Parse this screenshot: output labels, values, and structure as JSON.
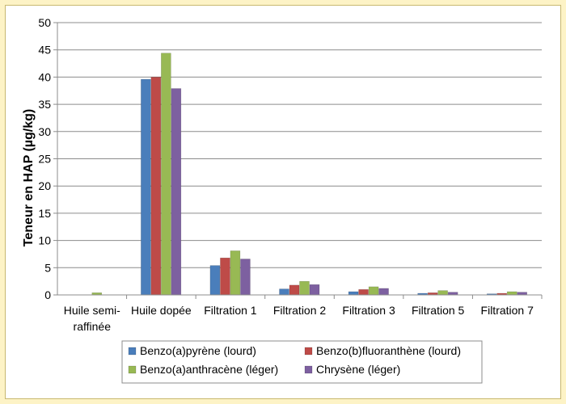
{
  "chart_data": {
    "type": "bar",
    "ylabel": "Teneur en HAP (µg/kg)",
    "ylim": [
      0,
      50
    ],
    "yticks": [
      0,
      5,
      10,
      15,
      20,
      25,
      30,
      35,
      40,
      45,
      50
    ],
    "grid": true,
    "legend_position": "bottom",
    "categories": [
      [
        "Huile semi-",
        "raffinée"
      ],
      [
        "Huile dopée"
      ],
      [
        "Filtration 1"
      ],
      [
        "Filtration 2"
      ],
      [
        "Filtration 3"
      ],
      [
        "Filtration 5"
      ],
      [
        "Filtration 7"
      ]
    ],
    "series": [
      {
        "name": "Benzo(a)pyrène (lourd)",
        "color": "#4a7ebb",
        "values": [
          0,
          39.6,
          5.4,
          1.1,
          0.6,
          0.3,
          0.2
        ]
      },
      {
        "name": "Benzo(b)fluoranthène (lourd)",
        "color": "#be4b48",
        "values": [
          0,
          40.0,
          6.8,
          1.8,
          1.0,
          0.4,
          0.3
        ]
      },
      {
        "name": "Benzo(a)anthracène (léger)",
        "color": "#98b954",
        "values": [
          0.4,
          44.4,
          8.1,
          2.5,
          1.5,
          0.8,
          0.6
        ]
      },
      {
        "name": "Chrysène (léger)",
        "color": "#7d60a0",
        "values": [
          0,
          37.9,
          6.6,
          1.9,
          1.2,
          0.5,
          0.5
        ]
      }
    ]
  }
}
